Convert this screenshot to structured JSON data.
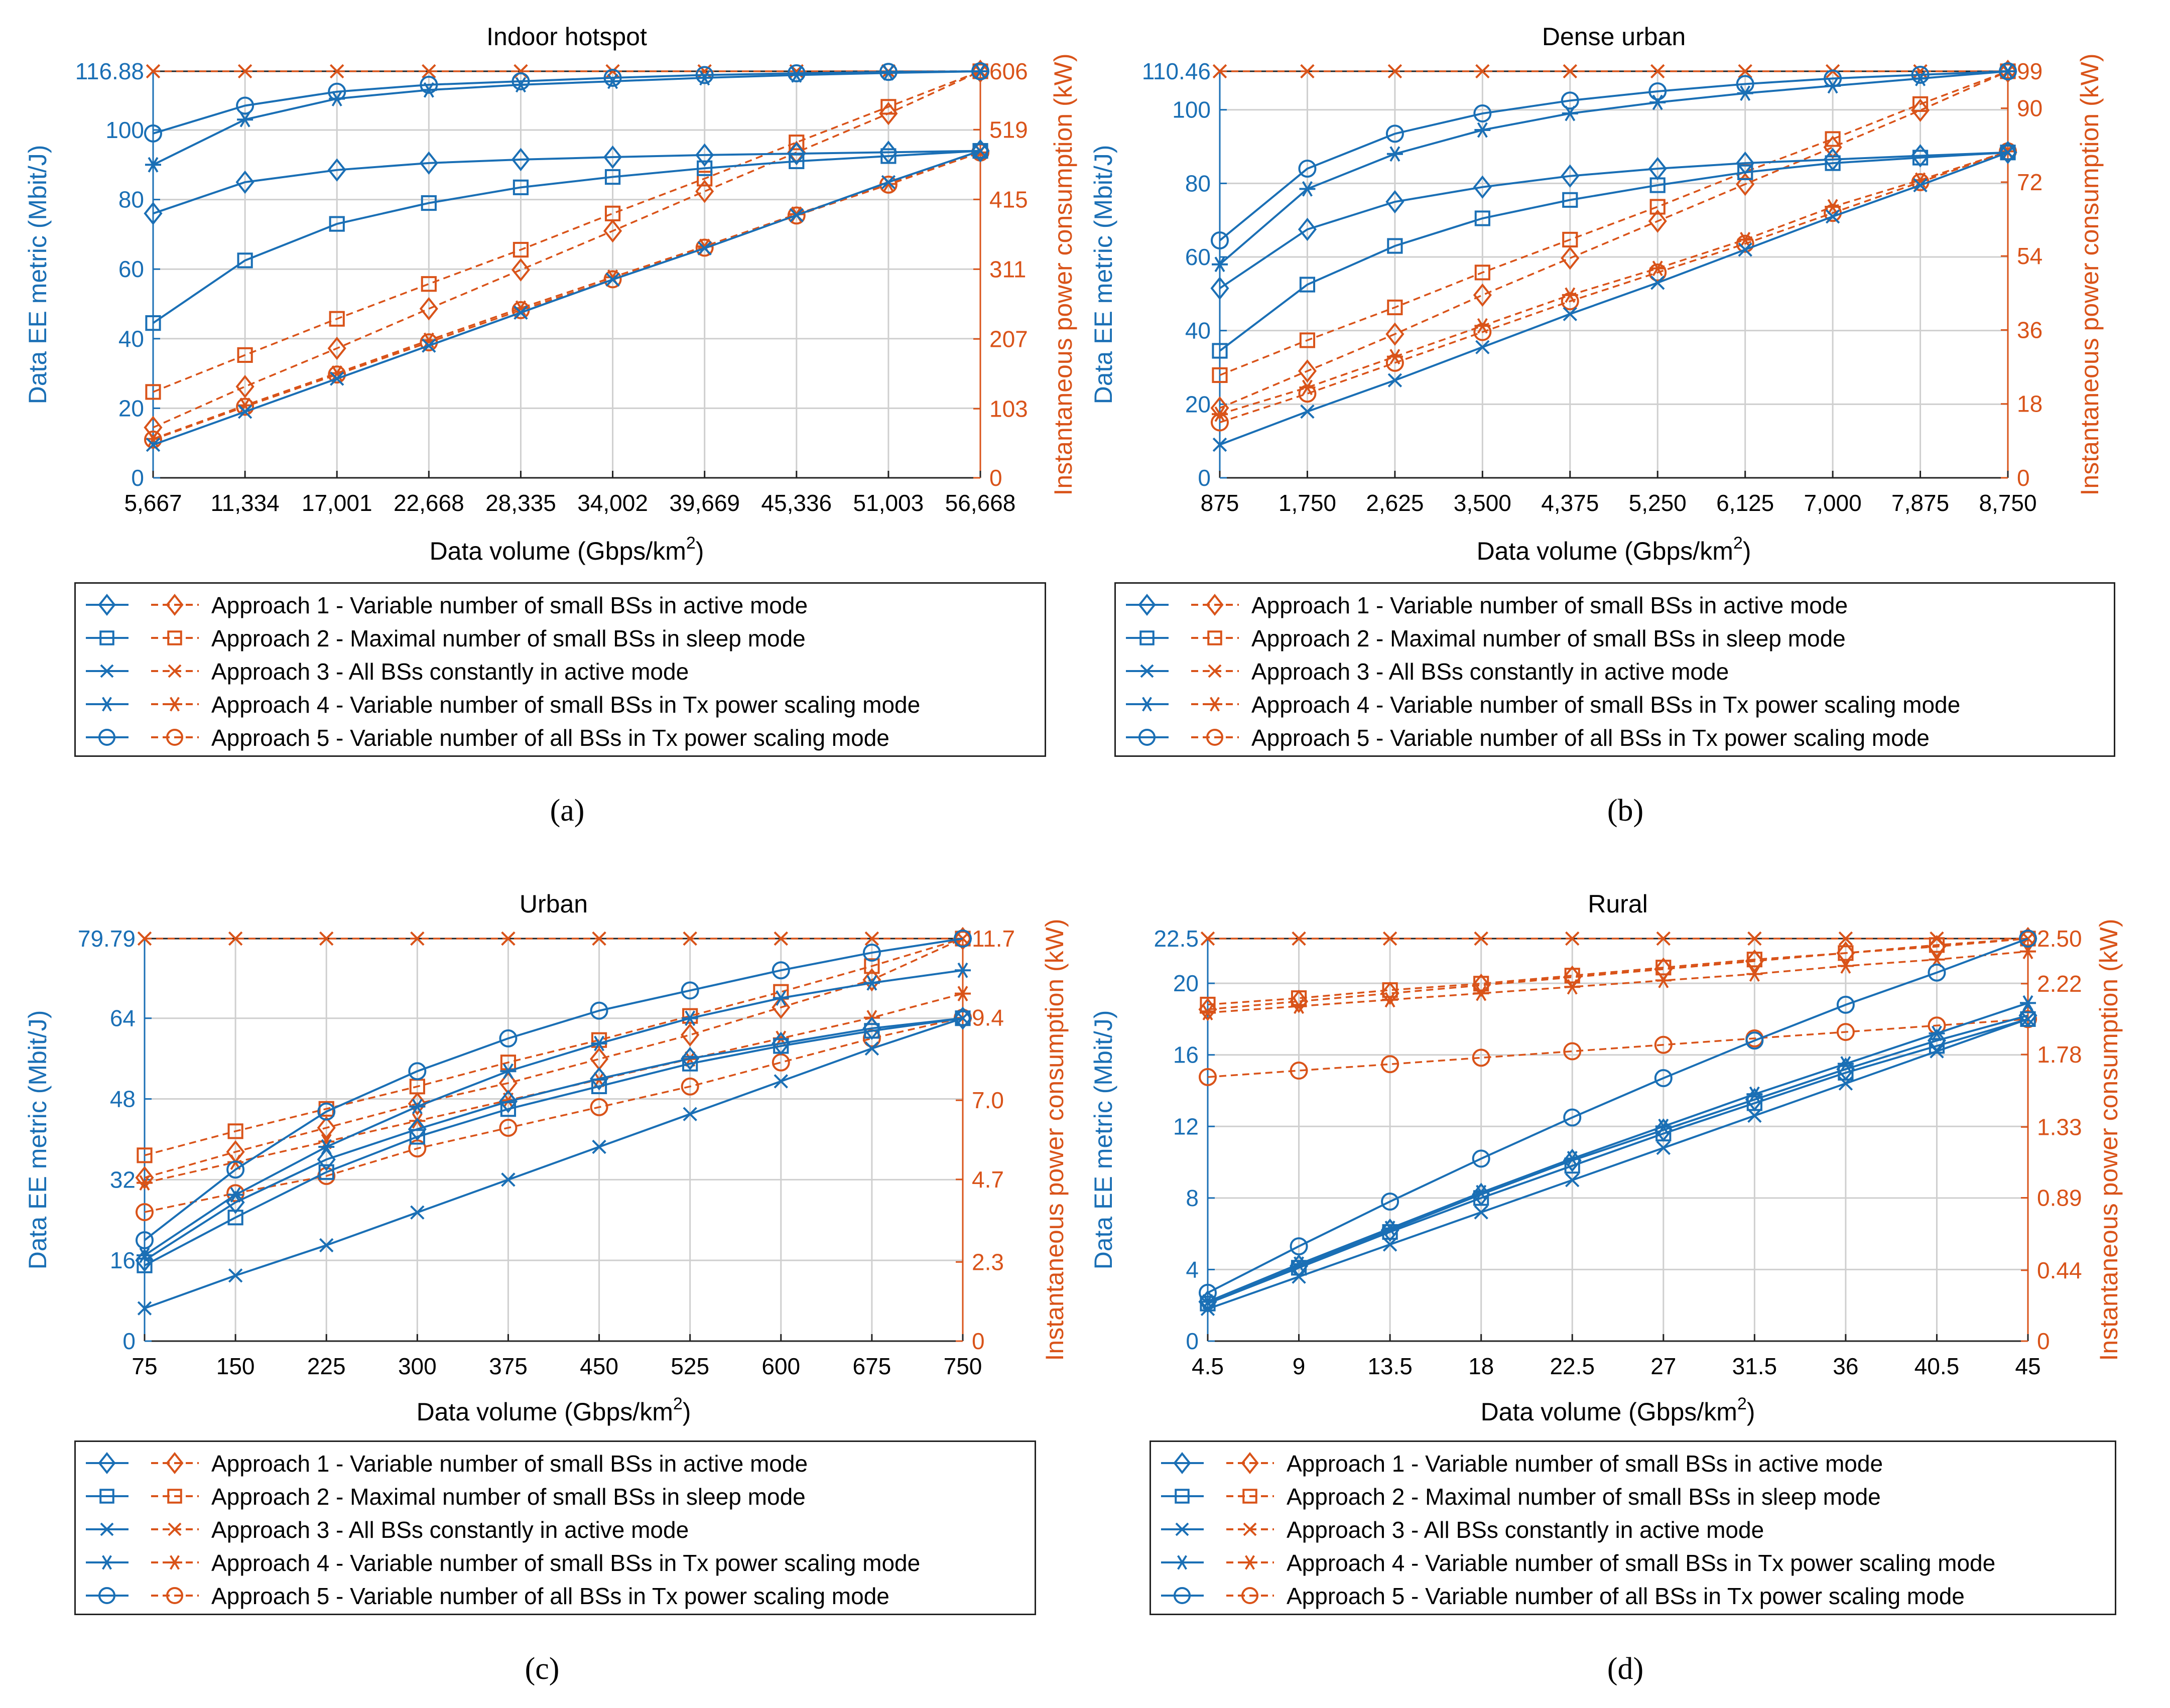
{
  "colors": {
    "blue": "#1a6fb5",
    "orange": "#d95319",
    "grid": "#cfcfcf",
    "text": "#000000"
  },
  "legend_labels": [
    "Approach 1 - Variable number of small BSs in active mode",
    "Approach 2 - Maximal number of small BSs in sleep mode",
    "Approach 3 - All BSs constantly in active mode",
    "Approach 4 - Variable number of small BSs in Tx power scaling mode",
    "Approach 5 - Variable number of all BSs in Tx power scaling mode"
  ],
  "markers": [
    "diamond",
    "square",
    "x",
    "asterisk",
    "circle"
  ],
  "chart_data": [
    {
      "type": "line",
      "title": "Indoor hotspot",
      "panel_label": "(a)",
      "xlabel": "Data volume (Gbps/km",
      "xlabel_sup": "2",
      "xlabel_end": ")",
      "ylabel_left": "Data EE metric (Mbit/J)",
      "ylabel_right": "Instantaneous power consumption (kW)",
      "x_ticks": [
        "5,667",
        "11,334",
        "17,001",
        "22,668",
        "28,335",
        "34,002",
        "39,669",
        "45,336",
        "51,003",
        "56,668"
      ],
      "yl_lim": [
        0,
        116.88
      ],
      "yl_ticks": [
        0,
        20,
        40,
        60,
        80,
        100,
        116.88
      ],
      "yl_tick_labels": [
        "0",
        "20",
        "40",
        "60",
        "80",
        "100",
        "116.88"
      ],
      "yr_lim": [
        0,
        606
      ],
      "yr_ticks": [
        0,
        103,
        207,
        311,
        415,
        519,
        606
      ],
      "yr_tick_labels": [
        "0",
        "103",
        "207",
        "311",
        "415",
        "519",
        "606"
      ],
      "ee_series": [
        {
          "name": "Approach 1",
          "values": [
            76,
            85,
            88.5,
            90.5,
            91.5,
            92.2,
            92.8,
            93.2,
            93.6,
            94
          ]
        },
        {
          "name": "Approach 2",
          "values": [
            44.5,
            62.5,
            73,
            79,
            83.5,
            86.5,
            89,
            91,
            92.5,
            94
          ]
        },
        {
          "name": "Approach 3",
          "values": [
            9.5,
            19,
            28.5,
            38,
            47.5,
            57,
            66,
            75.5,
            85,
            94
          ]
        },
        {
          "name": "Approach 4",
          "values": [
            90,
            103,
            109,
            111.5,
            113,
            114,
            115,
            115.8,
            116.4,
            116.88
          ]
        },
        {
          "name": "Approach 5",
          "values": [
            99,
            107,
            111,
            113,
            114,
            115,
            115.8,
            116.3,
            116.7,
            116.88
          ]
        }
      ],
      "power_series": [
        {
          "name": "Approach 1",
          "values": [
            75,
            136,
            193,
            252,
            310,
            368,
            427,
            485,
            543,
            606
          ]
        },
        {
          "name": "Approach 2",
          "values": [
            128,
            183,
            237,
            289,
            340,
            394,
            446,
            500,
            553,
            606
          ]
        },
        {
          "name": "Approach 3",
          "values": [
            606,
            606,
            606,
            606,
            606,
            606,
            606,
            606,
            606,
            606
          ]
        },
        {
          "name": "Approach 4",
          "values": [
            58,
            108,
            156,
            205,
            253,
            299,
            345,
            393,
            438,
            485
          ]
        },
        {
          "name": "Approach 5",
          "values": [
            57,
            106,
            154,
            202,
            250,
            296,
            343,
            391,
            437,
            485
          ]
        }
      ]
    },
    {
      "type": "line",
      "title": "Dense urban",
      "panel_label": "(b)",
      "xlabel": "Data volume (Gbps/km",
      "xlabel_sup": "2",
      "xlabel_end": ")",
      "ylabel_left": "Data EE metric (Mbit/J)",
      "ylabel_right": "Instantaneous power consumption (kW)",
      "x_ticks": [
        "875",
        "1,750",
        "2,625",
        "3,500",
        "4,375",
        "5,250",
        "6,125",
        "7,000",
        "7,875",
        "8,750"
      ],
      "yl_lim": [
        0,
        110.46
      ],
      "yl_ticks": [
        0,
        20,
        40,
        60,
        80,
        100,
        110.46
      ],
      "yl_tick_labels": [
        "0",
        "20",
        "40",
        "60",
        "80",
        "100",
        "110.46"
      ],
      "yr_lim": [
        0,
        99
      ],
      "yr_ticks": [
        0,
        18,
        36,
        54,
        72,
        90,
        99
      ],
      "yr_tick_labels": [
        "0",
        "18",
        "36",
        "54",
        "72",
        "90",
        "99"
      ],
      "ee_series": [
        {
          "name": "Approach 1",
          "values": [
            51.5,
            67.5,
            75,
            79,
            82,
            84,
            85.5,
            86.5,
            87.5,
            88.4
          ]
        },
        {
          "name": "Approach 2",
          "values": [
            34.5,
            52.5,
            63,
            70.5,
            75.5,
            79.5,
            83,
            85.5,
            87,
            88.4
          ]
        },
        {
          "name": "Approach 3",
          "values": [
            9,
            18,
            26.5,
            35.5,
            44.5,
            53,
            62,
            71,
            79.5,
            88.4
          ]
        },
        {
          "name": "Approach 4",
          "values": [
            58,
            78.5,
            88,
            94.5,
            99,
            102,
            104.5,
            106.5,
            108.5,
            110.46
          ]
        },
        {
          "name": "Approach 5",
          "values": [
            64.5,
            84,
            93.5,
            99,
            102.5,
            105,
            107,
            108.5,
            109.5,
            110.46
          ]
        }
      ],
      "power_series": [
        {
          "name": "Approach 1",
          "values": [
            17,
            26,
            35,
            44.5,
            53.5,
            62.5,
            71.5,
            80.5,
            89.5,
            99
          ]
        },
        {
          "name": "Approach 2",
          "values": [
            25,
            33.5,
            41.5,
            50,
            58,
            66,
            74.5,
            82.5,
            91,
            99
          ]
        },
        {
          "name": "Approach 3",
          "values": [
            99,
            99,
            99,
            99,
            99,
            99,
            99,
            99,
            99,
            99
          ]
        },
        {
          "name": "Approach 4",
          "values": [
            15.5,
            22,
            29.5,
            37,
            44.5,
            51,
            58,
            66,
            72.5,
            79.5
          ]
        },
        {
          "name": "Approach 5",
          "values": [
            13.5,
            20.5,
            28,
            35.5,
            43,
            50,
            57,
            64.5,
            72,
            79.5
          ]
        }
      ]
    },
    {
      "type": "line",
      "title": "Urban",
      "panel_label": "(c)",
      "xlabel": "Data volume (Gbps/km",
      "xlabel_sup": "2",
      "xlabel_end": ")",
      "ylabel_left": "Data EE metric (Mbit/J)",
      "ylabel_right": "Instantaneous power consumption (kW)",
      "x_ticks": [
        "75",
        "150",
        "225",
        "300",
        "375",
        "450",
        "525",
        "600",
        "675",
        "750"
      ],
      "yl_lim": [
        0,
        79.79
      ],
      "yl_ticks": [
        0,
        16,
        32,
        48,
        64,
        79.79
      ],
      "yl_tick_labels": [
        "0",
        "16",
        "32",
        "48",
        "64",
        "79.79"
      ],
      "yr_lim": [
        0,
        11.7
      ],
      "yr_ticks": [
        0,
        2.3,
        4.7,
        7.0,
        9.4,
        11.7
      ],
      "yr_tick_labels": [
        "0",
        "2.3",
        "4.7",
        "7.0",
        "9.4",
        "11.7"
      ],
      "ee_series": [
        {
          "name": "Approach 1",
          "values": [
            16,
            27.5,
            36,
            42,
            47.5,
            52,
            56,
            59,
            62,
            64
          ]
        },
        {
          "name": "Approach 2",
          "values": [
            15,
            24.5,
            33.5,
            40.5,
            46,
            50.5,
            55,
            58.5,
            61.5,
            64
          ]
        },
        {
          "name": "Approach 3",
          "values": [
            6.5,
            13,
            19,
            25.5,
            32,
            38.5,
            45,
            51.5,
            58,
            64
          ]
        },
        {
          "name": "Approach 4",
          "values": [
            17,
            29,
            38.5,
            46.5,
            53.5,
            59,
            64,
            68,
            71,
            73.5
          ]
        },
        {
          "name": "Approach 5",
          "values": [
            20,
            34,
            45.5,
            53.5,
            60,
            65.5,
            69.5,
            73.5,
            77,
            79.79
          ]
        }
      ],
      "power_series": [
        {
          "name": "Approach 1",
          "values": [
            4.75,
            5.5,
            6.2,
            6.9,
            7.5,
            8.2,
            8.9,
            9.7,
            10.5,
            11.7
          ]
        },
        {
          "name": "Approach 2",
          "values": [
            5.4,
            6.1,
            6.75,
            7.4,
            8.1,
            8.75,
            9.45,
            10.15,
            10.9,
            11.7
          ]
        },
        {
          "name": "Approach 3",
          "values": [
            11.7,
            11.7,
            11.7,
            11.7,
            11.7,
            11.7,
            11.7,
            11.7,
            11.7,
            11.7
          ]
        },
        {
          "name": "Approach 4",
          "values": [
            4.6,
            5.2,
            5.8,
            6.4,
            7.0,
            7.6,
            8.2,
            8.8,
            9.4,
            10.1
          ]
        },
        {
          "name": "Approach 5",
          "values": [
            3.75,
            4.3,
            4.8,
            5.6,
            6.2,
            6.8,
            7.4,
            8.1,
            8.8,
            9.4
          ]
        }
      ]
    },
    {
      "type": "line",
      "title": "Rural",
      "panel_label": "(d)",
      "xlabel": "Data volume (Gbps/km",
      "xlabel_sup": "2",
      "xlabel_end": ")",
      "ylabel_left": "Data EE metric (Mbit/J)",
      "ylabel_right": "Instantaneous power consumption (kW)",
      "x_ticks": [
        "4.5",
        "9",
        "13.5",
        "18",
        "22.5",
        "27",
        "31.5",
        "36",
        "40.5",
        "45"
      ],
      "yl_lim": [
        0,
        22.5
      ],
      "yl_ticks": [
        0,
        4,
        8,
        12,
        16,
        20,
        22.5
      ],
      "yl_tick_labels": [
        "0",
        "4",
        "8",
        "12",
        "16",
        "20",
        "22.5"
      ],
      "yr_lim": [
        0,
        2.5
      ],
      "yr_ticks": [
        0,
        0.44,
        0.89,
        1.33,
        1.78,
        2.22,
        2.5
      ],
      "yr_tick_labels": [
        "0",
        "0.44",
        "0.89",
        "1.33",
        "1.78",
        "2.22",
        "2.50"
      ],
      "ee_series": [
        {
          "name": "Approach 1",
          "values": [
            2.2,
            4.2,
            6.2,
            8.2,
            10.1,
            11.8,
            13.5,
            15.2,
            16.8,
            18.2
          ]
        },
        {
          "name": "Approach 2",
          "values": [
            2.1,
            4.1,
            6.1,
            8.0,
            9.8,
            11.6,
            13.3,
            15.0,
            16.5,
            18.0
          ]
        },
        {
          "name": "Approach 3",
          "values": [
            1.8,
            3.6,
            5.4,
            7.2,
            9.0,
            10.8,
            12.6,
            14.4,
            16.2,
            18.0
          ]
        },
        {
          "name": "Approach 4",
          "values": [
            2.2,
            4.3,
            6.3,
            8.3,
            10.2,
            12.0,
            13.8,
            15.5,
            17.2,
            18.9
          ]
        },
        {
          "name": "Approach 5",
          "values": [
            2.7,
            5.3,
            7.8,
            10.2,
            12.5,
            14.7,
            16.8,
            18.8,
            20.6,
            22.5
          ]
        }
      ],
      "power_series": [
        {
          "name": "Approach 1",
          "values": [
            2.06,
            2.11,
            2.16,
            2.21,
            2.26,
            2.31,
            2.36,
            2.41,
            2.45,
            2.5
          ]
        },
        {
          "name": "Approach 2",
          "values": [
            2.09,
            2.13,
            2.18,
            2.22,
            2.27,
            2.32,
            2.37,
            2.41,
            2.46,
            2.5
          ]
        },
        {
          "name": "Approach 3",
          "values": [
            2.5,
            2.5,
            2.5,
            2.5,
            2.5,
            2.5,
            2.5,
            2.5,
            2.5,
            2.5
          ]
        },
        {
          "name": "Approach 4",
          "values": [
            2.04,
            2.08,
            2.12,
            2.16,
            2.2,
            2.24,
            2.28,
            2.33,
            2.37,
            2.42
          ]
        },
        {
          "name": "Approach 5",
          "values": [
            1.64,
            1.68,
            1.72,
            1.76,
            1.8,
            1.84,
            1.88,
            1.92,
            1.96,
            2.0
          ]
        }
      ]
    }
  ]
}
